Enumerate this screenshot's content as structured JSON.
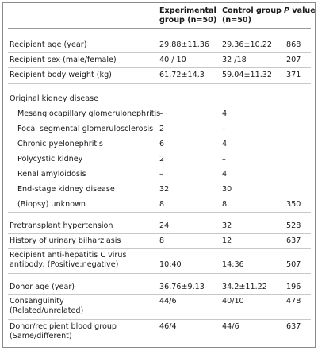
{
  "header": {
    "col1": [
      "Experimental",
      "group (n=50)"
    ],
    "col2": [
      "Control group",
      "(n=50)"
    ],
    "col3_italic": "P",
    "col3_rest": " value"
  },
  "rows": [
    {
      "label": "Recipient age (year)",
      "exp": "29.88±11.36",
      "ctl": "29.36±10.22",
      "p": ".868"
    },
    {
      "label": "Recipient sex (male/female)",
      "exp": "40 / 10",
      "ctl": "32 /18",
      "p": ".207"
    },
    {
      "label": "Recipient body weight (kg)",
      "exp": "61.72±14.3",
      "ctl": "59.04±11.32",
      "p": ".371"
    },
    {
      "label": "Original kidney disease",
      "exp": "",
      "ctl": "",
      "p": ""
    },
    {
      "label": "Mesangiocapillary glomerulonephritis",
      "exp": "–",
      "ctl": "4",
      "p": ""
    },
    {
      "label": "Focal segmental glomerulosclerosis",
      "exp": "2",
      "ctl": "–",
      "p": ""
    },
    {
      "label": "Chronic pyelonephritis",
      "exp": "6",
      "ctl": "4",
      "p": ""
    },
    {
      "label": "Polycystic kidney",
      "exp": "2",
      "ctl": "–",
      "p": ""
    },
    {
      "label": "Renal amyloidosis",
      "exp": "–",
      "ctl": "4",
      "p": ""
    },
    {
      "label": "End-stage kidney disease",
      "exp": "32",
      "ctl": "30",
      "p": ""
    },
    {
      "label": "(Biopsy) unknown",
      "exp": "8",
      "ctl": "8",
      "p": ".350"
    },
    {
      "label": "Pretransplant hypertension",
      "exp": "24",
      "ctl": "32",
      "p": ".528"
    },
    {
      "label": "History of urinary bilharziasis",
      "exp": "8",
      "ctl": "12",
      "p": ".637"
    },
    {
      "label": [
        "Recipient anti-hepatitis C virus",
        "antibody: (Positive:negative)"
      ],
      "exp": "10:40",
      "ctl": "14:36",
      "p": ".507"
    },
    {
      "label": "Donor age (year)",
      "exp": "36.76±9.13",
      "ctl": "34.2±11.22",
      "p": ".196"
    },
    {
      "label": [
        "Consanguinity",
        "(Related/unrelated)"
      ],
      "exp": "44/6",
      "ctl": "40/10",
      "p": ".478"
    },
    {
      "label": [
        "Donor/recipient blood group",
        "(Same/different)"
      ],
      "exp": "46/4",
      "ctl": "44/6",
      "p": ".637"
    }
  ]
}
